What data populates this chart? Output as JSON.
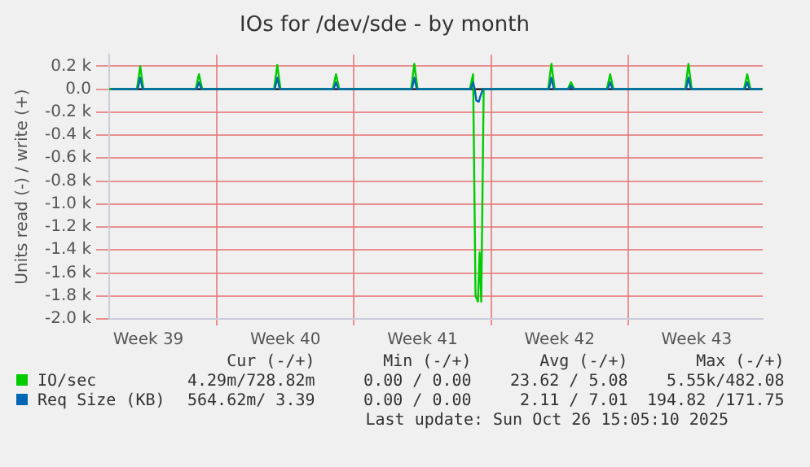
{
  "chart_data": {
    "type": "line",
    "title": "IOs for /dev/sde - by month",
    "ylabel": "Units read (-) / write (+)",
    "xlim": [
      "2025-09-23T12:00",
      "2025-10-26T21:00"
    ],
    "xticks": [
      {
        "value": "2025-09-25T12:00",
        "label": "Week 39"
      },
      {
        "value": "2025-09-29",
        "label": null
      },
      {
        "value": "2025-10-02T12:00",
        "label": "Week 40"
      },
      {
        "value": "2025-10-06",
        "label": null
      },
      {
        "value": "2025-10-09T12:00",
        "label": "Week 41"
      },
      {
        "value": "2025-10-13",
        "label": null
      },
      {
        "value": "2025-10-16T12:00",
        "label": "Week 42"
      },
      {
        "value": "2025-10-20",
        "label": null
      },
      {
        "value": "2025-10-23T12:00",
        "label": "Week 43"
      }
    ],
    "ylim": [
      -2000,
      300
    ],
    "yticks": [
      {
        "value": 200,
        "label": "0.2 k"
      },
      {
        "value": 0,
        "label": "0.0"
      },
      {
        "value": -200,
        "label": "-0.2 k"
      },
      {
        "value": -400,
        "label": "-0.4 k"
      },
      {
        "value": -600,
        "label": "-0.6 k"
      },
      {
        "value": -800,
        "label": "-0.8 k"
      },
      {
        "value": -1000,
        "label": "-1.0 k"
      },
      {
        "value": -1200,
        "label": "-1.2 k"
      },
      {
        "value": -1400,
        "label": "-1.4 k"
      },
      {
        "value": -1600,
        "label": "-1.6 k"
      },
      {
        "value": -1800,
        "label": "-1.8 k"
      },
      {
        "value": -2000,
        "label": "-2.0 k"
      }
    ],
    "grid": true,
    "legend": "bottom",
    "marker": "none",
    "line_style": "solid",
    "ref_lines": [
      {
        "axis": "y",
        "value": 0,
        "color": "#000000"
      }
    ],
    "series": [
      {
        "name": "IO/sec",
        "color": "#00cc00",
        "x": [
          "2025-09-23T12:00",
          "2025-09-24T22:00",
          "2025-09-25T02:00",
          "2025-09-25T06:00",
          "2025-09-27T22:00",
          "2025-09-28T02:00",
          "2025-09-28T06:00",
          "2025-10-01T22:00",
          "2025-10-02T02:00",
          "2025-10-02T06:00",
          "2025-10-04T22:00",
          "2025-10-05T02:00",
          "2025-10-05T06:00",
          "2025-10-08T22:00",
          "2025-10-09T02:00",
          "2025-10-09T06:00",
          "2025-10-11T22:00",
          "2025-10-12T02:00",
          "2025-10-12T05:00",
          "2025-10-12T08:00",
          "2025-10-12T10:00",
          "2025-10-12T12:00",
          "2025-10-12T15:00",
          "2025-10-15T22:00",
          "2025-10-16T02:00",
          "2025-10-16T06:00",
          "2025-10-16T22:00",
          "2025-10-17T02:00",
          "2025-10-17T06:00",
          "2025-10-18T22:00",
          "2025-10-19T02:00",
          "2025-10-19T06:00",
          "2025-10-22T22:00",
          "2025-10-23T02:00",
          "2025-10-23T06:00",
          "2025-10-25T22:00",
          "2025-10-26T02:00",
          "2025-10-26T06:00",
          "2025-10-26T21:00"
        ],
        "values": [
          0,
          0,
          200,
          0,
          0,
          130,
          0,
          0,
          210,
          0,
          0,
          130,
          0,
          0,
          220,
          0,
          0,
          130,
          -1800,
          -1850,
          -1420,
          -1850,
          0,
          0,
          220,
          0,
          0,
          60,
          0,
          0,
          130,
          0,
          0,
          220,
          0,
          0,
          130,
          0,
          0
        ]
      },
      {
        "name": "Req Size (KB)",
        "color": "#0066b3",
        "x": [
          "2025-09-23T14:00",
          "2025-09-24T23:00",
          "2025-09-25T02:00",
          "2025-09-25T05:00",
          "2025-09-27T23:00",
          "2025-09-28T02:00",
          "2025-09-28T05:00",
          "2025-10-01T23:00",
          "2025-10-02T02:00",
          "2025-10-02T05:00",
          "2025-10-04T23:00",
          "2025-10-05T02:00",
          "2025-10-05T05:00",
          "2025-10-08T23:00",
          "2025-10-09T02:00",
          "2025-10-09T05:00",
          "2025-10-11T23:00",
          "2025-10-12T02:00",
          "2025-10-12T04:00",
          "2025-10-12T06:00",
          "2025-10-12T09:00",
          "2025-10-12T11:00",
          "2025-10-12T14:00",
          "2025-10-15T23:00",
          "2025-10-16T02:00",
          "2025-10-16T05:00",
          "2025-10-16T23:00",
          "2025-10-17T02:00",
          "2025-10-17T05:00",
          "2025-10-18T23:00",
          "2025-10-19T02:00",
          "2025-10-19T05:00",
          "2025-10-22T23:00",
          "2025-10-23T02:00",
          "2025-10-23T05:00",
          "2025-10-25T23:00",
          "2025-10-26T02:00",
          "2025-10-26T05:00",
          "2025-10-26T20:00"
        ],
        "values": [
          0,
          0,
          100,
          0,
          0,
          60,
          0,
          0,
          100,
          0,
          0,
          60,
          0,
          0,
          100,
          0,
          0,
          60,
          0,
          -100,
          -110,
          -60,
          0,
          0,
          100,
          0,
          0,
          30,
          0,
          0,
          60,
          0,
          0,
          100,
          0,
          0,
          60,
          0,
          0
        ]
      }
    ],
    "annotations": [
      "Cur (-/+)",
      "Min (-/+)",
      "Avg (-/+)",
      "Max (-/+)",
      "4.29m/728.82m",
      "0.00 / 0.00",
      "23.62 / 5.08",
      "5.55k/482.08",
      "564.62m/ 3.39",
      "0.00 / 0.00",
      "2.11 / 7.01",
      "194.82 /171.75",
      "Last update: Sun Oct 26 15:05:10 2025"
    ]
  }
}
